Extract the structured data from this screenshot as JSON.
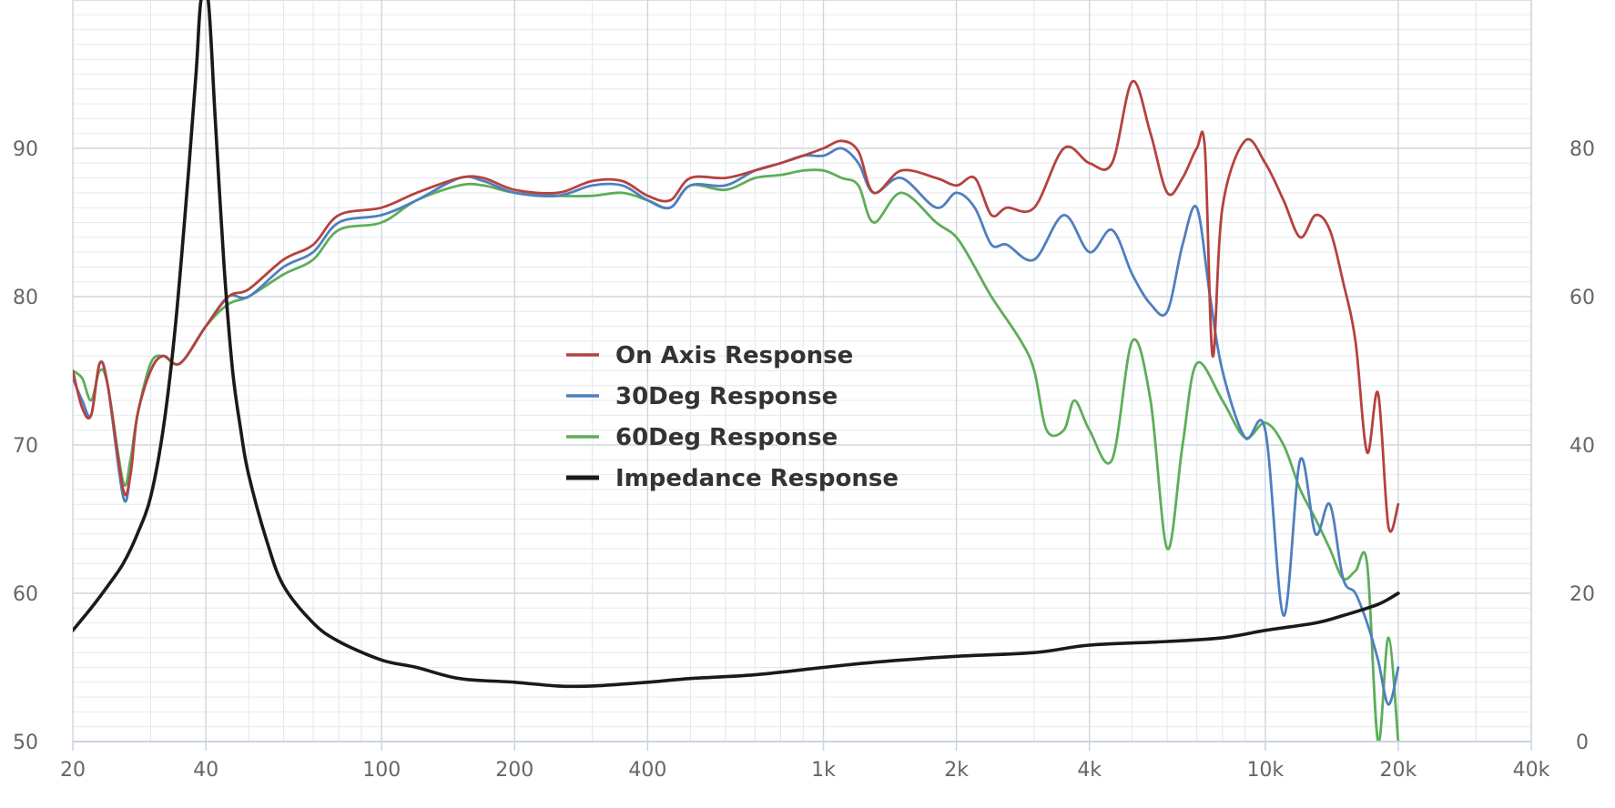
{
  "chart_data": {
    "type": "line",
    "title": "",
    "xlabel": "",
    "ylabel": "",
    "x_scale": "log",
    "xlim": [
      20,
      40000
    ],
    "ylim_left": [
      50,
      100
    ],
    "ylim_right": [
      0,
      100
    ],
    "grid": true,
    "legend_position": "center",
    "x_ticks": [
      {
        "v": 20,
        "label": "20"
      },
      {
        "v": 40,
        "label": "40"
      },
      {
        "v": 100,
        "label": "100"
      },
      {
        "v": 200,
        "label": "200"
      },
      {
        "v": 400,
        "label": "400"
      },
      {
        "v": 1000,
        "label": "1k"
      },
      {
        "v": 2000,
        "label": "2k"
      },
      {
        "v": 4000,
        "label": "4k"
      },
      {
        "v": 10000,
        "label": "10k"
      },
      {
        "v": 20000,
        "label": "20k"
      },
      {
        "v": 40000,
        "label": "40k"
      }
    ],
    "y_ticks_left": [
      50,
      60,
      70,
      80,
      90
    ],
    "y_ticks_right": [
      0,
      20,
      40,
      60,
      80
    ],
    "series": [
      {
        "name": "On Axis Response",
        "color": "#b5423f",
        "axis": "left",
        "points": [
          [
            20,
            75
          ],
          [
            21,
            72.5
          ],
          [
            22,
            72
          ],
          [
            23,
            75.5
          ],
          [
            24,
            74
          ],
          [
            26,
            67
          ],
          [
            27,
            68
          ],
          [
            28,
            72
          ],
          [
            30,
            75
          ],
          [
            32,
            76
          ],
          [
            35,
            75.5
          ],
          [
            40,
            78
          ],
          [
            45,
            80
          ],
          [
            50,
            80.5
          ],
          [
            60,
            82.5
          ],
          [
            70,
            83.5
          ],
          [
            80,
            85.5
          ],
          [
            100,
            86
          ],
          [
            120,
            87
          ],
          [
            150,
            88
          ],
          [
            170,
            88
          ],
          [
            200,
            87.2
          ],
          [
            250,
            87
          ],
          [
            300,
            87.8
          ],
          [
            350,
            87.8
          ],
          [
            400,
            86.8
          ],
          [
            450,
            86.5
          ],
          [
            500,
            88
          ],
          [
            600,
            88
          ],
          [
            700,
            88.5
          ],
          [
            800,
            89
          ],
          [
            900,
            89.5
          ],
          [
            1000,
            90
          ],
          [
            1100,
            90.5
          ],
          [
            1200,
            89.8
          ],
          [
            1300,
            87
          ],
          [
            1500,
            88.5
          ],
          [
            1800,
            88
          ],
          [
            2000,
            87.5
          ],
          [
            2200,
            88
          ],
          [
            2400,
            85.5
          ],
          [
            2600,
            86
          ],
          [
            3000,
            86
          ],
          [
            3500,
            90
          ],
          [
            4000,
            89
          ],
          [
            4500,
            89
          ],
          [
            5000,
            94.5
          ],
          [
            5500,
            91
          ],
          [
            6000,
            87
          ],
          [
            6500,
            88
          ],
          [
            7000,
            90
          ],
          [
            7300,
            90
          ],
          [
            7600,
            76
          ],
          [
            8000,
            86
          ],
          [
            9000,
            90.5
          ],
          [
            10000,
            89
          ],
          [
            11000,
            86.5
          ],
          [
            12000,
            84
          ],
          [
            13000,
            85.5
          ],
          [
            14000,
            84.5
          ],
          [
            15000,
            81
          ],
          [
            16000,
            77
          ],
          [
            17000,
            69.5
          ],
          [
            18000,
            73.5
          ],
          [
            19000,
            64.5
          ],
          [
            20000,
            66
          ]
        ]
      },
      {
        "name": "30Deg Response",
        "color": "#4f7fbf",
        "axis": "left",
        "points": [
          [
            20,
            74.5
          ],
          [
            21,
            73
          ],
          [
            22,
            72
          ],
          [
            23,
            75.5
          ],
          [
            24,
            74
          ],
          [
            26,
            66.5
          ],
          [
            27,
            68
          ],
          [
            28,
            72
          ],
          [
            30,
            75
          ],
          [
            32,
            76
          ],
          [
            35,
            75.5
          ],
          [
            40,
            78
          ],
          [
            45,
            80
          ],
          [
            50,
            80
          ],
          [
            60,
            82
          ],
          [
            70,
            83
          ],
          [
            80,
            85
          ],
          [
            100,
            85.5
          ],
          [
            120,
            86.5
          ],
          [
            150,
            88
          ],
          [
            170,
            87.8
          ],
          [
            200,
            87
          ],
          [
            250,
            86.8
          ],
          [
            300,
            87.5
          ],
          [
            350,
            87.5
          ],
          [
            400,
            86.5
          ],
          [
            450,
            86
          ],
          [
            500,
            87.5
          ],
          [
            600,
            87.5
          ],
          [
            700,
            88.5
          ],
          [
            800,
            89
          ],
          [
            900,
            89.5
          ],
          [
            1000,
            89.5
          ],
          [
            1100,
            90
          ],
          [
            1200,
            89
          ],
          [
            1300,
            87
          ],
          [
            1500,
            88
          ],
          [
            1800,
            86
          ],
          [
            2000,
            87
          ],
          [
            2200,
            86
          ],
          [
            2400,
            83.5
          ],
          [
            2600,
            83.5
          ],
          [
            3000,
            82.5
          ],
          [
            3500,
            85.5
          ],
          [
            4000,
            83
          ],
          [
            4500,
            84.5
          ],
          [
            5000,
            81.5
          ],
          [
            5500,
            79.5
          ],
          [
            6000,
            79
          ],
          [
            6500,
            83.5
          ],
          [
            7000,
            86
          ],
          [
            7500,
            80
          ],
          [
            8000,
            75
          ],
          [
            9000,
            70.5
          ],
          [
            10000,
            71
          ],
          [
            11000,
            58.5
          ],
          [
            12000,
            69
          ],
          [
            13000,
            64
          ],
          [
            14000,
            66
          ],
          [
            15000,
            61
          ],
          [
            16000,
            60
          ],
          [
            17000,
            58
          ],
          [
            18000,
            55.5
          ],
          [
            19000,
            52.5
          ],
          [
            20000,
            55
          ]
        ]
      },
      {
        "name": "60Deg Response",
        "color": "#5dae59",
        "axis": "left",
        "points": [
          [
            20,
            75
          ],
          [
            21,
            74.5
          ],
          [
            22,
            73
          ],
          [
            23,
            75
          ],
          [
            24,
            74
          ],
          [
            26,
            67.5
          ],
          [
            27,
            69
          ],
          [
            28,
            72
          ],
          [
            30,
            75.5
          ],
          [
            32,
            76
          ],
          [
            35,
            75.5
          ],
          [
            40,
            78
          ],
          [
            45,
            79.5
          ],
          [
            50,
            80
          ],
          [
            60,
            81.5
          ],
          [
            70,
            82.5
          ],
          [
            80,
            84.5
          ],
          [
            100,
            85
          ],
          [
            120,
            86.5
          ],
          [
            150,
            87.5
          ],
          [
            170,
            87.5
          ],
          [
            200,
            87
          ],
          [
            250,
            86.8
          ],
          [
            300,
            86.8
          ],
          [
            350,
            87
          ],
          [
            400,
            86.5
          ],
          [
            450,
            86
          ],
          [
            500,
            87.5
          ],
          [
            600,
            87.2
          ],
          [
            700,
            88
          ],
          [
            800,
            88.2
          ],
          [
            900,
            88.5
          ],
          [
            1000,
            88.5
          ],
          [
            1100,
            88
          ],
          [
            1200,
            87.5
          ],
          [
            1300,
            85
          ],
          [
            1500,
            87
          ],
          [
            1800,
            85
          ],
          [
            2000,
            84
          ],
          [
            2200,
            82
          ],
          [
            2400,
            80
          ],
          [
            2800,
            77
          ],
          [
            3000,
            75
          ],
          [
            3200,
            71
          ],
          [
            3500,
            71
          ],
          [
            3700,
            73
          ],
          [
            4000,
            71
          ],
          [
            4500,
            69
          ],
          [
            5000,
            77
          ],
          [
            5500,
            73
          ],
          [
            6000,
            63
          ],
          [
            6500,
            70
          ],
          [
            7000,
            75.5
          ],
          [
            8000,
            73
          ],
          [
            9000,
            70.5
          ],
          [
            10000,
            71.5
          ],
          [
            11000,
            70
          ],
          [
            12000,
            67
          ],
          [
            13000,
            65
          ],
          [
            14000,
            63
          ],
          [
            15000,
            61
          ],
          [
            16000,
            61.5
          ],
          [
            17000,
            62
          ],
          [
            18000,
            50
          ],
          [
            19000,
            57
          ],
          [
            20000,
            50
          ]
        ]
      },
      {
        "name": "Impedance Response",
        "color": "#1a1a1a",
        "axis": "right",
        "points": [
          [
            20,
            15
          ],
          [
            22,
            18
          ],
          [
            24,
            21
          ],
          [
            26,
            24
          ],
          [
            28,
            28
          ],
          [
            30,
            33
          ],
          [
            32,
            42
          ],
          [
            34,
            55
          ],
          [
            36,
            72
          ],
          [
            38,
            90
          ],
          [
            39,
            100
          ],
          [
            40.5,
            100
          ],
          [
            42,
            84
          ],
          [
            44,
            64
          ],
          [
            46,
            50
          ],
          [
            48,
            42
          ],
          [
            50,
            36
          ],
          [
            55,
            27
          ],
          [
            60,
            21
          ],
          [
            70,
            16
          ],
          [
            80,
            13.5
          ],
          [
            100,
            11
          ],
          [
            120,
            10
          ],
          [
            150,
            8.5
          ],
          [
            200,
            8
          ],
          [
            250,
            7.5
          ],
          [
            300,
            7.5
          ],
          [
            400,
            8
          ],
          [
            500,
            8.5
          ],
          [
            700,
            9
          ],
          [
            1000,
            10
          ],
          [
            1200,
            10.5
          ],
          [
            1500,
            11
          ],
          [
            2000,
            11.5
          ],
          [
            3000,
            12
          ],
          [
            4000,
            13
          ],
          [
            6000,
            13.5
          ],
          [
            8000,
            14
          ],
          [
            10000,
            15
          ],
          [
            13000,
            16
          ],
          [
            15000,
            17
          ],
          [
            18000,
            18.5
          ],
          [
            20000,
            20
          ]
        ]
      }
    ]
  }
}
